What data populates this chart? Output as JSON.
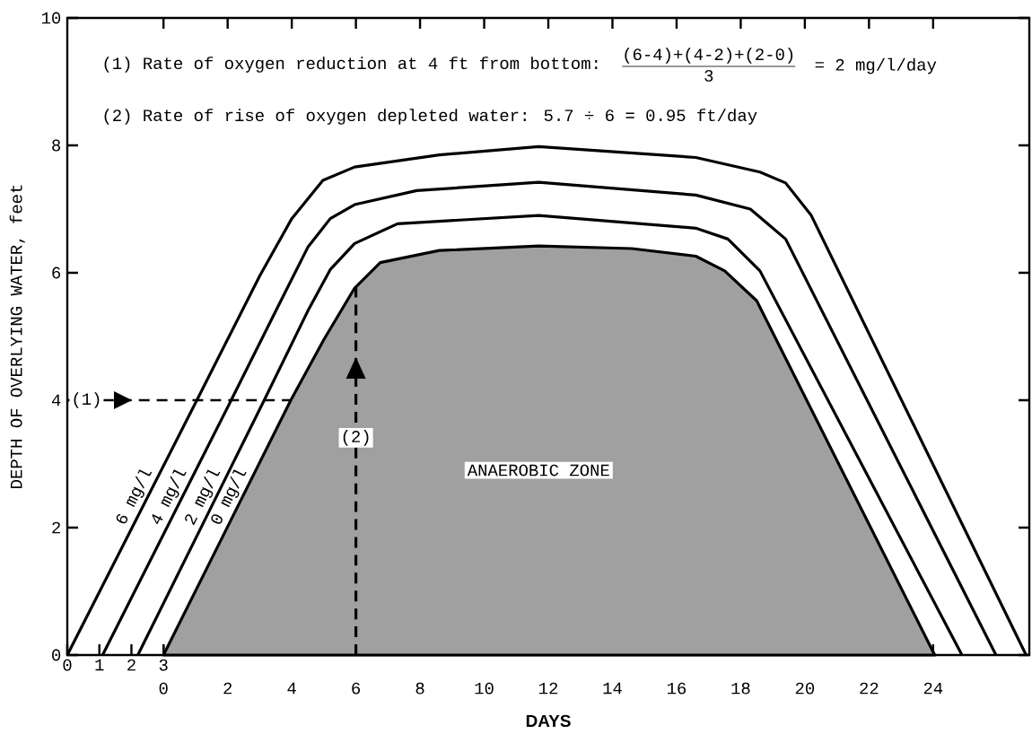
{
  "chart_data": {
    "type": "line",
    "xlabel": "DAYS",
    "ylabel": "DEPTH OF OVERLYING WATER, feet",
    "xlim": [
      -3,
      27
    ],
    "xticks": [
      0,
      2,
      4,
      6,
      8,
      10,
      12,
      14,
      16,
      18,
      20,
      22,
      24
    ],
    "x2lim": [
      0,
      30
    ],
    "x2ticks": [
      0,
      1,
      2,
      3
    ],
    "ref_lines": [
      {
        "axis": "y",
        "value": 4,
        "line_style": "dashed"
      },
      {
        "axis": "x",
        "value": 6,
        "line_style": "dashed"
      }
    ],
    "ylim": [
      0,
      10
    ],
    "yticks": [
      0,
      2,
      4,
      6,
      8,
      10
    ],
    "series": [
      {
        "name": "6 mg/l",
        "color": "#000000",
        "x": [
          -3,
          1.04,
          3.0,
          4.0,
          4.97,
          5.96,
          8.6,
          11.7,
          16.6,
          18.6,
          19.4,
          20.2,
          26.9
        ],
        "values": [
          0,
          4,
          5.95,
          6.85,
          7.45,
          7.66,
          7.85,
          7.98,
          7.81,
          7.58,
          7.41,
          6.9,
          0
        ]
      },
      {
        "name": "4 mg/l",
        "color": "#000000",
        "x": [
          -1.9,
          2.11,
          3.6,
          4.5,
          5.2,
          5.96,
          7.9,
          11.7,
          16.6,
          18.3,
          19.4,
          25.96
        ],
        "values": [
          0,
          4,
          5.5,
          6.4,
          6.85,
          7.07,
          7.29,
          7.42,
          7.22,
          7.0,
          6.53,
          0
        ]
      },
      {
        "name": "2 mg/l",
        "color": "#000000",
        "x": [
          -0.8,
          3.14,
          4.5,
          5.2,
          5.96,
          7.3,
          11.7,
          16.6,
          17.6,
          18.6,
          24.9
        ],
        "values": [
          0,
          4,
          5.4,
          6.05,
          6.46,
          6.77,
          6.9,
          6.7,
          6.53,
          6.03,
          0
        ]
      },
      {
        "name": "0 mg/l",
        "type": "area",
        "color": "#a0a0a0",
        "x": [
          0,
          3.97,
          5.0,
          5.96,
          6.76,
          8.6,
          11.7,
          14.6,
          16.6,
          17.5,
          18.5,
          24.05
        ],
        "values": [
          0,
          4,
          4.95,
          5.76,
          6.16,
          6.35,
          6.42,
          6.38,
          6.26,
          6.03,
          5.56,
          0
        ]
      }
    ],
    "annotations": [
      "(1) Rate of oxygen reduction at 4 ft from bottom:",
      "\\frac{\\texttt{(6-4)+(4-2)+(2-0)}}{\\texttt{3}}\\quad\\texttt{= 2 mg/l/day}",
      "(2) Rate of rise of oxygen depleted water: 5.7 ÷ 6 = 0.95 ft/day",
      "ANAEROBIC ZONE",
      "(1)",
      "(2)"
    ]
  }
}
